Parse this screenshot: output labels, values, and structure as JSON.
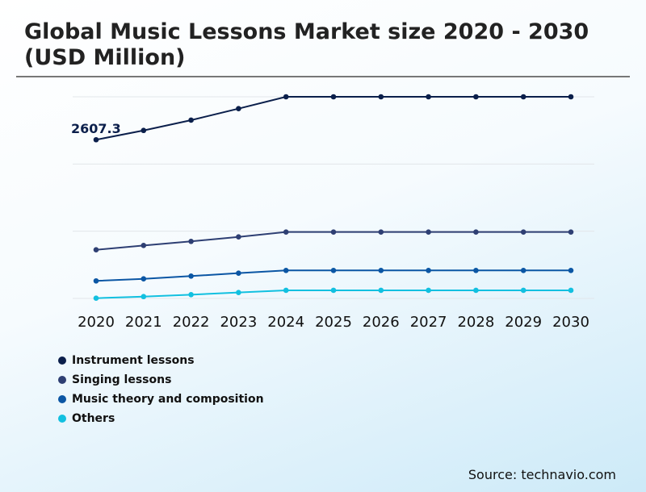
{
  "title": "Global Music Lessons Market size 2020 - 2030 (USD Million)",
  "source": "Source: technavio.com",
  "chart_data": {
    "type": "line",
    "title": "Global Music Lessons Market size 2020 - 2030 (USD Million)",
    "categories": [
      "2020",
      "2021",
      "2022",
      "2023",
      "2024",
      "2025",
      "2026",
      "2027",
      "2028",
      "2029",
      "2030"
    ],
    "ylim": [
      0,
      3313
    ],
    "grid": true,
    "legend_position": "bottom-left",
    "annotation": "2607.3",
    "series": [
      {
        "name": "Instrument lessons",
        "color": "#0b1f4b",
        "values": [
          2607.3,
          2760,
          2929,
          3118,
          3313,
          3313,
          3313,
          3313,
          3313,
          3313,
          3313
        ]
      },
      {
        "name": "Singing lessons",
        "color": "#2e3f73",
        "values": [
          799,
          870,
          937,
          1011,
          1091,
          1091,
          1091,
          1091,
          1091,
          1091,
          1091
        ]
      },
      {
        "name": "Music theory and composition",
        "color": "#0b56a4",
        "values": [
          288,
          322,
          367,
          415,
          460,
          460,
          460,
          460,
          460,
          460,
          460
        ]
      },
      {
        "name": "Others",
        "color": "#12c0e0",
        "values": [
          4,
          30,
          62,
          97,
          133,
          133,
          133,
          133,
          133,
          133,
          133
        ]
      }
    ]
  }
}
